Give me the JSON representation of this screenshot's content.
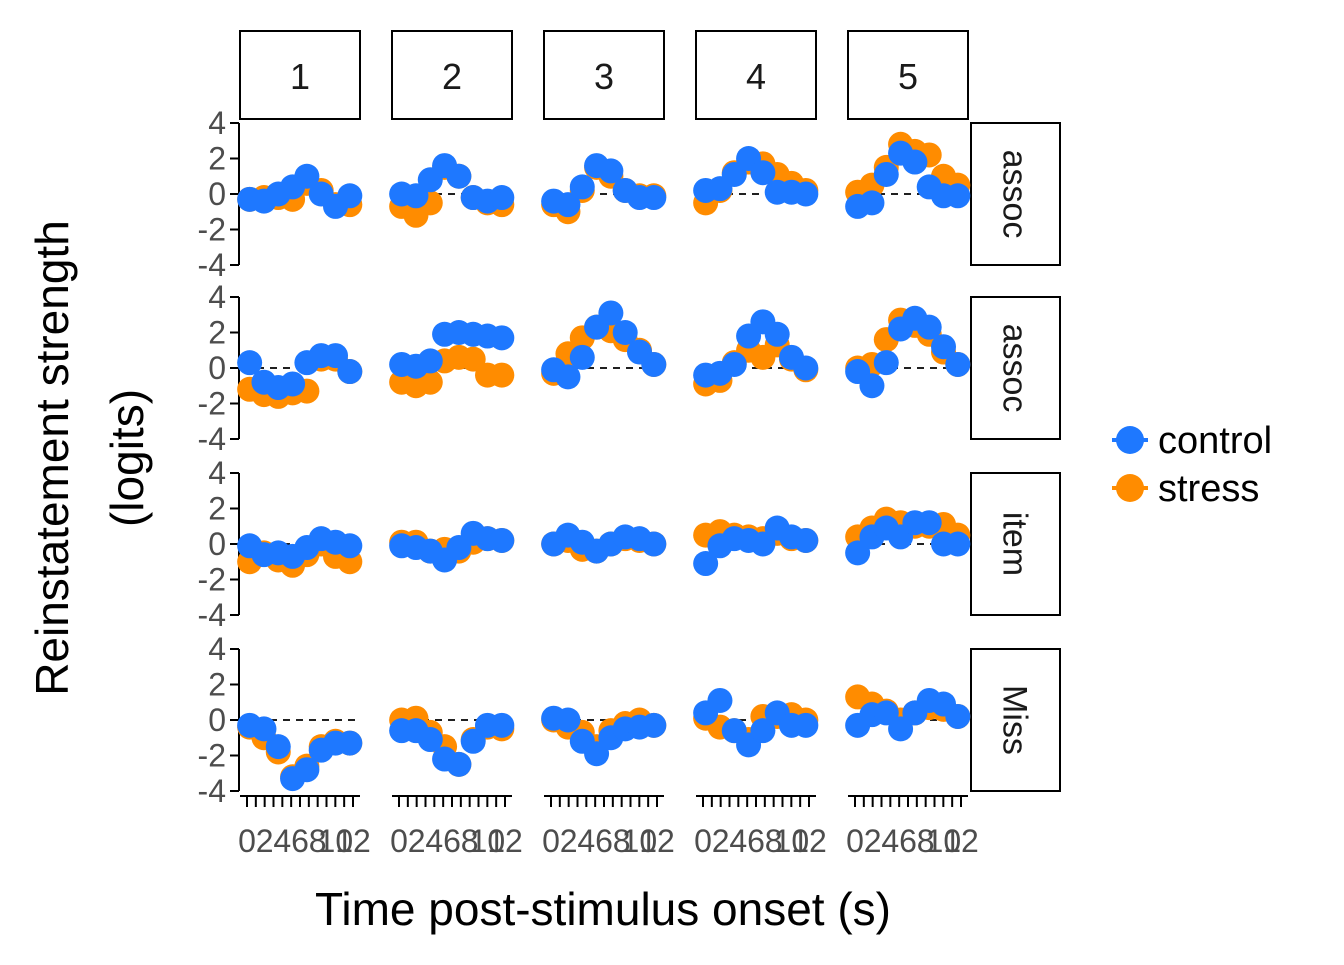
{
  "chart_data": {
    "type": "scatter",
    "facet_columns": [
      "1",
      "2",
      "3",
      "4",
      "5"
    ],
    "facet_rows": [
      "assoc",
      "assoc",
      "item",
      "Miss"
    ],
    "xlabel": "Time post-stimulus onset (s)",
    "ylabel_line1": "Reinstatement strength",
    "ylabel_line2": "(logits)",
    "x": [
      0,
      1,
      2,
      3,
      4,
      5,
      6,
      7,
      8,
      9,
      10
    ],
    "x_tick_labels": [
      "0",
      "2",
      "4",
      "6",
      "8",
      "10",
      "12"
    ],
    "x_ticks": [
      0,
      1,
      2,
      3,
      4,
      5,
      6,
      7,
      8,
      9,
      10,
      11,
      12
    ],
    "ylim": [
      -4,
      4
    ],
    "y_ticks": [
      -4,
      -2,
      0,
      2,
      4
    ],
    "y_tick_labels": [
      "-4",
      "-2",
      "0",
      "2",
      "4"
    ],
    "reference_line": 0,
    "legend_position": "right",
    "colors": {
      "control": "#1E78FF",
      "stress": "#FF8C00"
    },
    "series": [
      {
        "name": "stress",
        "color": "#FF8C00",
        "panels": [
          [
            [
              -0.3,
              -0.2,
              -0.2,
              -0.3,
              0.6,
              0.2,
              -0.6,
              -0.6
            ],
            [
              -0.7,
              -1.2,
              -0.5,
              1.5,
              1.0,
              -0.2,
              -0.5,
              -0.6
            ],
            [
              -0.6,
              -1.0,
              0.2,
              1.5,
              1.0,
              0.2,
              -0.1,
              -0.1
            ],
            [
              -0.5,
              0.2,
              1.2,
              1.8,
              1.7,
              1.1,
              0.6,
              0.2
            ],
            [
              0.1,
              0.5,
              1.5,
              2.8,
              2.4,
              2.2,
              1.0,
              0.5
            ]
          ],
          [
            [
              -1.2,
              -1.5,
              -1.6,
              -1.4,
              -1.3,
              0.5,
              0.5,
              -0.2
            ],
            [
              -0.8,
              -1.0,
              -0.8,
              0.4,
              0.6,
              0.5,
              -0.4,
              -0.4
            ],
            [
              -0.3,
              0.8,
              1.7,
              2.3,
              2.1,
              1.6,
              1.0,
              0.2
            ],
            [
              -0.9,
              -0.7,
              0.3,
              1.0,
              0.6,
              1.3,
              0.5,
              -0.1
            ],
            [
              0.0,
              0.2,
              1.6,
              2.7,
              2.4,
              1.9,
              0.9,
              0.2
            ]
          ],
          [
            [
              -1.0,
              -0.5,
              -0.9,
              -1.2,
              -0.6,
              0.0,
              -0.7,
              -1.0
            ],
            [
              0.1,
              0.1,
              -0.4,
              -0.3,
              -0.4,
              0.1,
              0.3,
              0.2
            ],
            [
              0.0,
              0.2,
              -0.3,
              -0.4,
              0.0,
              0.3,
              0.2,
              0.0
            ],
            [
              0.5,
              0.7,
              0.5,
              0.4,
              0.3,
              0.6,
              0.3,
              0.2
            ],
            [
              0.4,
              0.9,
              1.4,
              1.2,
              1.0,
              1.0,
              1.1,
              0.5
            ]
          ],
          [
            [
              -0.4,
              -1.0,
              -1.8,
              -3.2,
              -2.6,
              -1.5,
              -1.2,
              -1.3
            ],
            [
              0.0,
              0.1,
              -0.7,
              -1.5,
              -2.5,
              -1.1,
              -0.4,
              -0.5
            ],
            [
              0.0,
              -0.4,
              -0.7,
              -1.5,
              -0.6,
              -0.2,
              0.0,
              -0.3
            ],
            [
              0.1,
              -0.4,
              -0.6,
              -1.1,
              0.2,
              0.2,
              0.3,
              0.0
            ],
            [
              1.3,
              0.9,
              0.5,
              0.0,
              0.4,
              0.7,
              0.6,
              0.2
            ]
          ]
        ]
      },
      {
        "name": "control",
        "color": "#1E78FF",
        "panels": [
          [
            [
              -0.3,
              -0.4,
              0.0,
              0.4,
              1.0,
              0.0,
              -0.7,
              -0.1
            ],
            [
              0.0,
              -0.1,
              0.8,
              1.6,
              1.0,
              -0.2,
              -0.4,
              -0.2
            ],
            [
              -0.4,
              -0.6,
              0.4,
              1.6,
              1.3,
              0.2,
              -0.2,
              -0.2
            ],
            [
              0.2,
              0.3,
              1.1,
              2.0,
              1.2,
              0.1,
              0.1,
              0.0
            ],
            [
              -0.7,
              -0.5,
              1.1,
              2.3,
              1.8,
              0.4,
              -0.1,
              -0.1
            ]
          ],
          [
            [
              0.3,
              -0.8,
              -1.1,
              -0.9,
              0.3,
              0.7,
              0.7,
              -0.2
            ],
            [
              0.2,
              0.1,
              0.4,
              1.9,
              2.0,
              1.9,
              1.8,
              1.7
            ],
            [
              -0.1,
              -0.5,
              0.6,
              2.3,
              3.1,
              2.0,
              0.9,
              0.2
            ],
            [
              -0.4,
              -0.3,
              0.2,
              1.8,
              2.6,
              1.9,
              0.6,
              0.0
            ],
            [
              -0.2,
              -1.0,
              0.3,
              2.2,
              2.8,
              2.3,
              1.2,
              0.2
            ]
          ],
          [
            [
              -0.1,
              -0.6,
              -0.5,
              -0.7,
              -0.2,
              0.3,
              0.1,
              -0.1
            ],
            [
              -0.1,
              -0.2,
              -0.4,
              -0.9,
              -0.2,
              0.6,
              0.3,
              0.2
            ],
            [
              0.0,
              0.5,
              0.1,
              -0.4,
              0.0,
              0.4,
              0.3,
              0.0
            ],
            [
              -1.1,
              -0.1,
              0.3,
              0.2,
              0.0,
              0.9,
              0.4,
              0.2
            ],
            [
              -0.5,
              0.4,
              0.9,
              0.4,
              1.2,
              1.2,
              0.0,
              0.0
            ]
          ],
          [
            [
              -0.3,
              -0.5,
              -1.5,
              -3.3,
              -2.8,
              -1.7,
              -1.3,
              -1.3
            ],
            [
              -0.6,
              -0.6,
              -1.1,
              -2.2,
              -2.5,
              -1.2,
              -0.3,
              -0.3
            ],
            [
              0.1,
              0.0,
              -1.2,
              -1.9,
              -1.0,
              -0.5,
              -0.4,
              -0.3
            ],
            [
              0.4,
              1.1,
              -0.6,
              -1.4,
              -0.6,
              0.4,
              -0.3,
              -0.3
            ],
            [
              -0.3,
              0.3,
              0.4,
              -0.5,
              0.4,
              1.1,
              0.9,
              0.2
            ]
          ]
        ]
      }
    ]
  }
}
